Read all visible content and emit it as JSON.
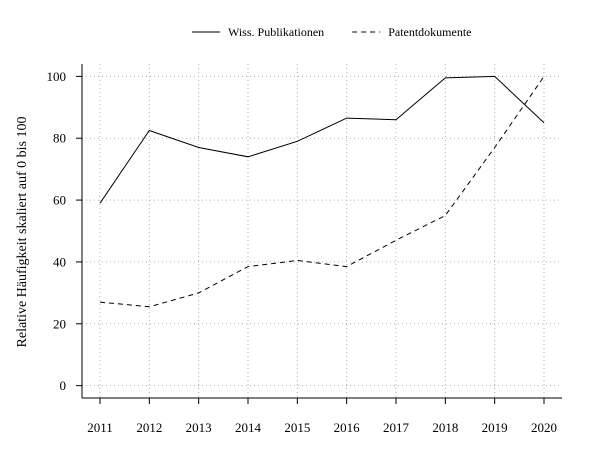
{
  "chart_data": {
    "type": "line",
    "x": [
      2011,
      2012,
      2013,
      2014,
      2015,
      2016,
      2017,
      2018,
      2019,
      2020
    ],
    "series": [
      {
        "name": "Wiss. Publikationen",
        "line_style": "solid",
        "values": [
          59,
          82.5,
          77,
          74,
          79,
          86.5,
          86,
          99.5,
          100,
          85
        ]
      },
      {
        "name": "Patentdokumente",
        "line_style": "dashed",
        "values": [
          27,
          25.5,
          30,
          38.5,
          40.5,
          38.5,
          47,
          55,
          77,
          100
        ]
      }
    ],
    "title": "",
    "xlabel": "",
    "ylabel": "Relative Häufigkeit skaliert auf 0 bis 100",
    "ylim": [
      -4,
      104
    ],
    "yticks": [
      0,
      20,
      40,
      60,
      80,
      100
    ],
    "grid": true,
    "grid_style": "dotted",
    "legend_position": "top-center",
    "colors": {
      "lines": "#000000",
      "grid": "#b0b0b0",
      "axis": "#000000"
    }
  }
}
